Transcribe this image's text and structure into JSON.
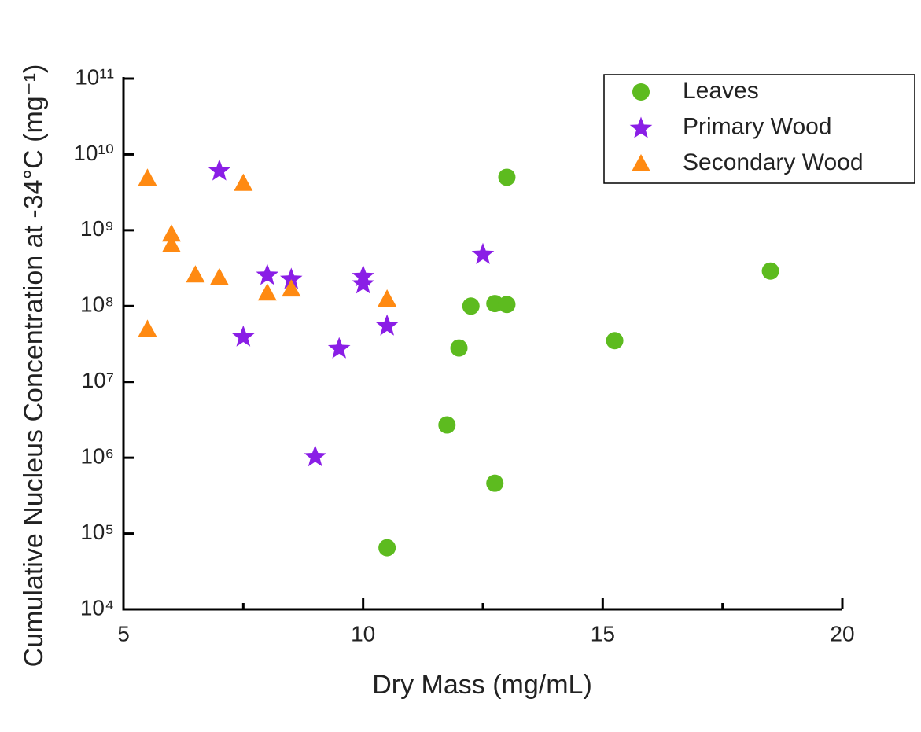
{
  "chart_data": {
    "type": "scatter",
    "x_label": "Dry Mass (mg/mL)",
    "y_label": "Cumulative Nucleus Concentration at -34°C (mg⁻¹)",
    "xlim": [
      5,
      20
    ],
    "xticks": [
      5,
      10,
      15,
      20
    ],
    "xminorticks": [
      7.5,
      12.5,
      17.5
    ],
    "ylim": [
      10000,
      100000000000
    ],
    "yscale": "log",
    "yticks": [
      {
        "value": 10000,
        "label": "10⁴"
      },
      {
        "value": 100000,
        "label": "10⁵"
      },
      {
        "value": 1000000,
        "label": "10⁶"
      },
      {
        "value": 10000000,
        "label": "10⁷"
      },
      {
        "value": 100000000,
        "label": "10⁸"
      },
      {
        "value": 1000000000,
        "label": "10⁹"
      },
      {
        "value": 10000000000,
        "label": "10¹⁰"
      },
      {
        "value": 100000000000,
        "label": "10¹¹"
      }
    ],
    "legend": "upper right",
    "series": [
      {
        "name": "Leaves",
        "marker": "circle",
        "color": "#5dbb1f",
        "x": [
          10.5,
          11.75,
          12,
          12.25,
          12.75,
          13,
          12.75,
          13,
          15.25,
          18.5
        ],
        "values": [
          65000,
          2700000,
          28000000,
          100000000,
          108000000,
          105000000,
          460000,
          5000000000,
          35000000,
          290000000
        ]
      },
      {
        "name": "Primary Wood",
        "marker": "star",
        "color": "#8a1ee6",
        "x": [
          7,
          8,
          8.5,
          7.5,
          9,
          9.5,
          10,
          10,
          10.5,
          12.5
        ],
        "values": [
          6200000000,
          260000000,
          230000000,
          40000000,
          1050000,
          28000000,
          250000000,
          200000000,
          56000000,
          490000000
        ]
      },
      {
        "name": "Secondary Wood",
        "marker": "triangle",
        "color": "#ff8a12",
        "x": [
          5.5,
          5.5,
          6,
          6,
          6.5,
          7,
          7.5,
          8,
          8.5,
          10.5
        ],
        "values": [
          4900000000,
          50000000,
          900000000,
          650000000,
          260000000,
          240000000,
          4200000000,
          150000000,
          170000000,
          125000000
        ]
      }
    ]
  }
}
